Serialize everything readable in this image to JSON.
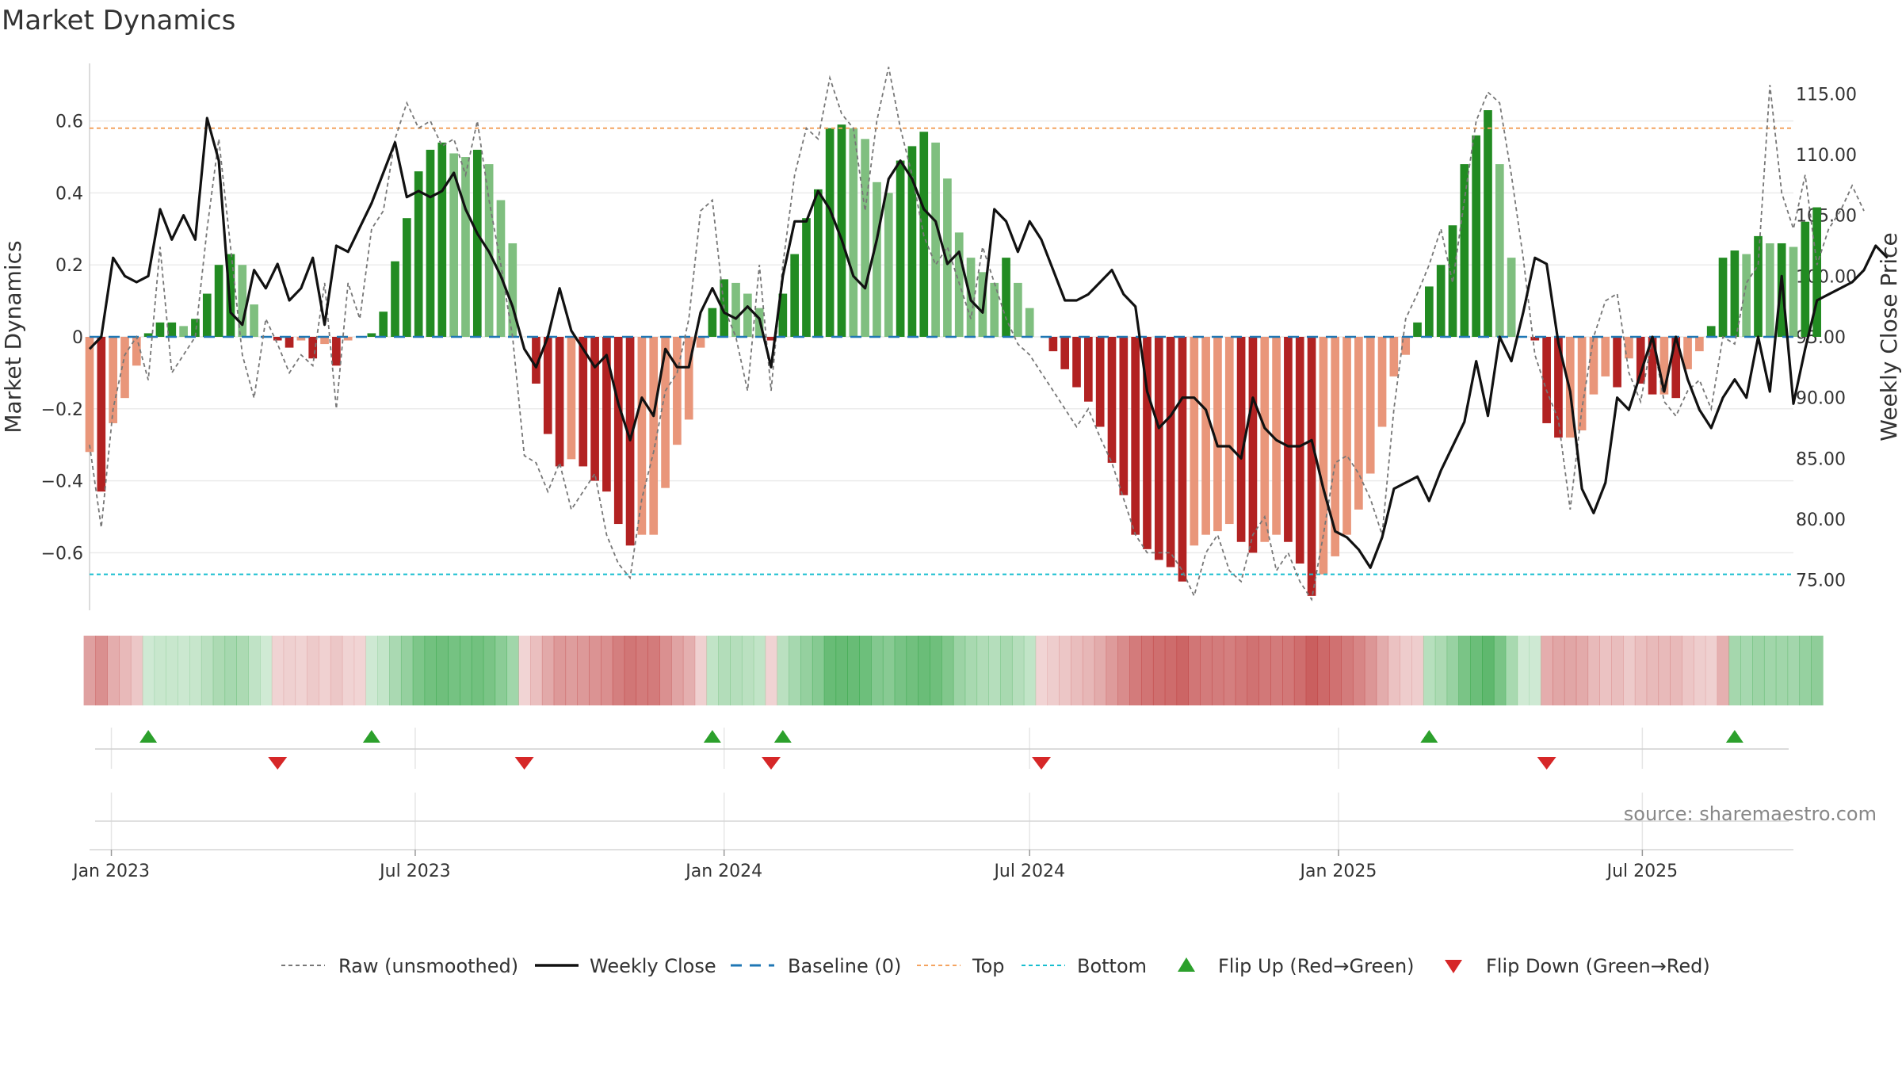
{
  "title": "Market Dynamics",
  "source": "source: sharemaestro.com",
  "colors": {
    "strong_green": "#228B22",
    "light_green": "#7FBF7F",
    "strong_red": "#B22222",
    "light_red": "#E9967A",
    "close": "#111111",
    "raw": "#777777",
    "baseline": "#1f77b4",
    "top": "#F4A460",
    "bottom": "#17BECF",
    "flip_up": "#2CA02C",
    "flip_down": "#D62728"
  },
  "chart_data": {
    "type": "bar",
    "title": "Market Dynamics",
    "ylabel": "Market Dynamics",
    "y2label": "Weekly Close Price",
    "ylim": [
      -0.76,
      0.76
    ],
    "y2lim": [
      72.5,
      117.5
    ],
    "xlim": [
      "2022-12-19",
      "2025-09-29"
    ],
    "y_ticks": [
      {
        "v": 0.6,
        "label": "0.6"
      },
      {
        "v": 0.4,
        "label": "0.4"
      },
      {
        "v": 0.2,
        "label": "0.2"
      },
      {
        "v": 0.0,
        "label": "0"
      },
      {
        "v": -0.2,
        "label": "−0.2"
      },
      {
        "v": -0.4,
        "label": "−0.4"
      },
      {
        "v": -0.6,
        "label": "−0.6"
      }
    ],
    "y2_ticks": [
      "115.00",
      "110.00",
      "105.00",
      "100.00",
      "95.00",
      "90.00",
      "85.00",
      "80.00",
      "75.00"
    ],
    "x_ticks": [
      {
        "date": "2023-01-01",
        "label": "Jan 2023"
      },
      {
        "date": "2023-07-01",
        "label": "Jul 2023"
      },
      {
        "date": "2024-01-01",
        "label": "Jan 2024"
      },
      {
        "date": "2024-07-01",
        "label": "Jul 2024"
      },
      {
        "date": "2025-01-01",
        "label": "Jan 2025"
      },
      {
        "date": "2025-07-01",
        "label": "Jul 2025"
      }
    ],
    "start_week": "2022-12-19",
    "top_level": 0.58,
    "bottom_level": -0.66,
    "baseline": 0,
    "dynamics": [
      -0.32,
      -0.43,
      -0.24,
      -0.17,
      -0.08,
      0.01,
      0.04,
      0.04,
      0.03,
      0.05,
      0.12,
      0.2,
      0.23,
      0.2,
      0.09,
      0.0,
      -0.01,
      -0.03,
      -0.01,
      -0.06,
      -0.02,
      -0.08,
      -0.01,
      0.0,
      0.01,
      0.07,
      0.21,
      0.33,
      0.46,
      0.52,
      0.54,
      0.51,
      0.5,
      0.52,
      0.48,
      0.38,
      0.26,
      0.0,
      -0.13,
      -0.27,
      -0.36,
      -0.34,
      -0.36,
      -0.4,
      -0.43,
      -0.52,
      -0.58,
      -0.55,
      -0.55,
      -0.42,
      -0.3,
      -0.23,
      -0.03,
      0.08,
      0.16,
      0.15,
      0.12,
      0.08,
      -0.01,
      0.12,
      0.23,
      0.33,
      0.41,
      0.58,
      0.59,
      0.58,
      0.55,
      0.43,
      0.4,
      0.49,
      0.53,
      0.57,
      0.54,
      0.44,
      0.29,
      0.22,
      0.18,
      0.15,
      0.22,
      0.15,
      0.08,
      0.0,
      -0.04,
      -0.09,
      -0.14,
      -0.18,
      -0.25,
      -0.35,
      -0.44,
      -0.55,
      -0.59,
      -0.62,
      -0.64,
      -0.68,
      -0.58,
      -0.55,
      -0.54,
      -0.52,
      -0.57,
      -0.6,
      -0.57,
      -0.55,
      -0.57,
      -0.63,
      -0.72,
      -0.66,
      -0.61,
      -0.55,
      -0.48,
      -0.38,
      -0.25,
      -0.11,
      -0.05,
      0.04,
      0.14,
      0.2,
      0.31,
      0.48,
      0.56,
      0.63,
      0.48,
      0.22,
      0.0,
      -0.01,
      -0.24,
      -0.28,
      -0.28,
      -0.26,
      -0.16,
      -0.11,
      -0.14,
      -0.06,
      -0.13,
      -0.16,
      -0.16,
      -0.17,
      -0.09,
      -0.04,
      0.03,
      0.22,
      0.24,
      0.23,
      0.28,
      0.26,
      0.26,
      0.25,
      0.32,
      0.36
    ],
    "close": [
      94,
      95,
      101.5,
      100,
      99.5,
      100,
      105.5,
      103,
      105,
      103,
      113,
      109.5,
      97,
      96,
      100.5,
      99,
      101,
      98,
      99,
      101.5,
      96,
      102.5,
      102,
      104,
      106,
      108.5,
      111,
      106.5,
      107,
      106.5,
      107,
      108.5,
      105.5,
      103.5,
      102,
      100,
      97.5,
      94,
      92.5,
      95,
      99,
      95.5,
      94,
      92.5,
      93.5,
      89.5,
      86.5,
      90,
      88.5,
      94,
      92.5,
      92.5,
      97,
      99,
      97,
      96.5,
      97.5,
      96.5,
      92.5,
      100,
      104.5,
      104.5,
      107,
      105.5,
      103,
      100,
      99,
      103,
      108,
      109.5,
      108,
      105.5,
      104.5,
      101,
      102,
      98,
      97,
      105.5,
      104.5,
      102,
      104.5,
      103,
      100.5,
      98,
      98,
      98.5,
      99.5,
      100.5,
      98.5,
      97.5,
      90.5,
      87.5,
      88.5,
      90,
      90,
      89,
      86,
      86,
      85,
      90,
      87.5,
      86.5,
      86,
      86,
      86.5,
      82.5,
      79,
      78.5,
      77.5,
      76,
      78.5,
      82.5,
      83,
      83.5,
      81.5,
      84,
      86,
      88,
      93,
      88.5,
      95,
      93,
      97,
      101.5,
      101,
      94.5,
      90.5,
      82.5,
      80.5,
      83,
      90,
      89,
      92,
      95,
      90.5,
      95,
      91.5,
      89,
      87.5,
      90,
      91.5,
      90,
      95,
      90.5,
      100,
      89.5,
      94,
      98,
      98.5,
      99,
      99.5,
      100.5,
      102.5,
      101.5
    ],
    "raw": [
      -0.3,
      -0.53,
      -0.2,
      -0.05,
      0.0,
      -0.12,
      0.25,
      -0.1,
      -0.05,
      0.0,
      0.3,
      0.55,
      0.25,
      -0.05,
      -0.17,
      0.05,
      -0.02,
      -0.1,
      -0.05,
      -0.08,
      0.15,
      -0.2,
      0.15,
      0.05,
      0.3,
      0.35,
      0.55,
      0.65,
      0.58,
      0.6,
      0.53,
      0.55,
      0.45,
      0.6,
      0.38,
      0.2,
      0.0,
      -0.33,
      -0.35,
      -0.43,
      -0.35,
      -0.48,
      -0.43,
      -0.38,
      -0.55,
      -0.63,
      -0.67,
      -0.45,
      -0.32,
      -0.15,
      -0.1,
      0.05,
      0.35,
      0.38,
      0.08,
      0.0,
      -0.15,
      0.2,
      -0.15,
      0.2,
      0.45,
      0.58,
      0.55,
      0.72,
      0.62,
      0.58,
      0.35,
      0.6,
      0.75,
      0.58,
      0.45,
      0.28,
      0.2,
      0.25,
      0.15,
      0.05,
      0.25,
      0.15,
      0.05,
      -0.02,
      -0.05,
      -0.1,
      -0.15,
      -0.2,
      -0.25,
      -0.2,
      -0.28,
      -0.35,
      -0.45,
      -0.55,
      -0.6,
      -0.6,
      -0.6,
      -0.65,
      -0.72,
      -0.6,
      -0.55,
      -0.65,
      -0.68,
      -0.55,
      -0.5,
      -0.65,
      -0.6,
      -0.68,
      -0.73,
      -0.55,
      -0.35,
      -0.33,
      -0.38,
      -0.45,
      -0.55,
      -0.2,
      0.05,
      0.12,
      0.2,
      0.3,
      0.15,
      0.38,
      0.6,
      0.68,
      0.65,
      0.45,
      0.22,
      -0.05,
      -0.15,
      -0.23,
      -0.48,
      -0.2,
      0.0,
      0.1,
      0.12,
      -0.1,
      -0.18,
      0.0,
      -0.18,
      -0.22,
      -0.15,
      -0.12,
      -0.2,
      0.0,
      -0.02,
      0.15,
      0.2,
      0.7,
      0.4,
      0.3,
      0.45,
      0.2,
      0.3,
      0.35,
      0.42,
      0.35
    ],
    "regimes": [
      {
        "state": "red",
        "from": 0,
        "to": 4
      },
      {
        "state": "green",
        "from": 5,
        "to": 15
      },
      {
        "state": "red",
        "from": 16,
        "to": 23
      },
      {
        "state": "green",
        "from": 24,
        "to": 36
      },
      {
        "state": "red",
        "from": 37,
        "to": 52
      },
      {
        "state": "green",
        "from": 53,
        "to": 57
      },
      {
        "state": "red",
        "from": 58,
        "to": 58
      },
      {
        "state": "green",
        "from": 59,
        "to": 80
      },
      {
        "state": "red",
        "from": 81,
        "to": 113
      },
      {
        "state": "green",
        "from": 114,
        "to": 123
      },
      {
        "state": "red",
        "from": 124,
        "to": 139
      },
      {
        "state": "green",
        "from": 140,
        "to": 149
      }
    ],
    "flip_up_weeks": [
      5,
      24,
      53,
      59,
      114,
      140
    ],
    "flip_down_weeks": [
      16,
      37,
      58,
      81,
      124
    ],
    "legend": {
      "raw": "Raw (unsmoothed)",
      "close": "Weekly Close",
      "baseline": "Baseline (0)",
      "top": "Top",
      "bottom": "Bottom",
      "flip_up": "Flip Up (Red→Green)",
      "flip_down": "Flip Down (Green→Red)"
    }
  }
}
